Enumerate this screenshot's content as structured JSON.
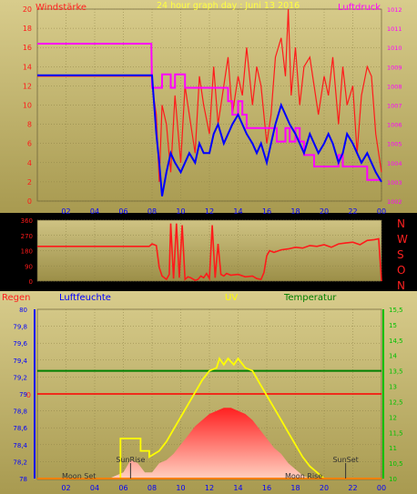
{
  "header": {
    "left_label": "Windstärke",
    "title": "24 hour graph day : Juni 13 2016",
    "right_label": "Luftdruck"
  },
  "direction_labels": [
    "N",
    "W",
    "S",
    "O",
    "N"
  ],
  "bottom_labels": {
    "regen": "Regen",
    "luftfeuchte": "Luftfeuchte",
    "uv": "UV",
    "temperatur": "Temperatur",
    "sun_rise": "SunRise",
    "sun_set": "SunSet",
    "moon_set": "Moon Set",
    "moon_rise": "Moon Rise",
    "zero_marker": "0"
  },
  "colors": {
    "background": "#000000",
    "plot_bg_top": "#d0c484",
    "plot_bg_bottom": "#a89a4e",
    "wind": "#ff1a1a",
    "wind_avg": "#0000ff",
    "pressure": "#ff00ff",
    "direction": "#ff1a1a",
    "uv": "#ffff00",
    "temp_ref": "#008000",
    "rain": "#ff0000",
    "humidity_axis": "#0000ff",
    "temp_axis": "#00c000",
    "x_tick_text": "#0000ff"
  },
  "chart_data": [
    {
      "type": "line",
      "name": "wind-pressure",
      "xlabel": "",
      "ylabel_left": "Windstärke",
      "ylabel_right": "Luftdruck",
      "x_ticks": [
        "02",
        "04",
        "06",
        "08",
        "10",
        "12",
        "14",
        "16",
        "18",
        "20",
        "22",
        "00"
      ],
      "x_range": [
        0,
        24
      ],
      "ylim_left": [
        0,
        20
      ],
      "y_ticks_left": [
        "0",
        "2",
        "4",
        "6",
        "8",
        "10",
        "12",
        "14",
        "16",
        "18",
        "20"
      ],
      "ylim_right": [
        1002,
        1012
      ],
      "y_ticks_right": [
        "1002",
        "1003",
        "1004",
        "1005",
        "1006",
        "1007",
        "1008",
        "1009",
        "1010",
        "1011",
        "1012"
      ],
      "series": [
        {
          "kind": "gust",
          "x": [
            0,
            8,
            8.1,
            8.3,
            8.5,
            8.7,
            9,
            9.3,
            9.6,
            10,
            10.3,
            10.6,
            11,
            11.3,
            11.6,
            12,
            12.3,
            12.6,
            13,
            13.3,
            13.6,
            14,
            14.3,
            14.6,
            15,
            15.3,
            15.6,
            16,
            16.3,
            16.6,
            17,
            17.3,
            17.5,
            17.7,
            18,
            18.3,
            18.6,
            19,
            19.3,
            19.6,
            20,
            20.3,
            20.6,
            21,
            21.3,
            21.6,
            22,
            22.3,
            22.6,
            23,
            23.3,
            23.6,
            24
          ],
          "y": [
            13,
            13,
            11,
            9,
            2,
            10,
            8,
            3,
            11,
            4,
            12,
            9,
            5,
            13,
            10,
            7,
            14,
            8,
            12,
            15,
            9,
            13,
            11,
            16,
            10,
            14,
            12,
            6,
            9,
            15,
            17,
            13,
            20,
            11,
            16,
            10,
            14,
            15,
            12,
            9,
            13,
            11,
            15,
            8,
            14,
            10,
            12,
            5,
            11,
            14,
            13,
            7,
            3
          ]
        },
        {
          "kind": "average",
          "x": [
            0,
            8,
            8.05,
            8.3,
            8.5,
            8.7,
            9,
            9.3,
            9.6,
            10,
            10.3,
            10.6,
            11,
            11.3,
            11.6,
            12,
            12.3,
            12.6,
            13,
            13.3,
            13.6,
            14,
            14.3,
            14.6,
            15,
            15.3,
            15.6,
            16,
            16.3,
            16.6,
            17,
            17.3,
            17.6,
            18,
            18.3,
            18.6,
            19,
            19.3,
            19.6,
            20,
            20.3,
            20.6,
            21,
            21.3,
            21.6,
            22,
            22.3,
            22.6,
            23,
            23.3,
            23.6,
            24
          ],
          "y": [
            13.1,
            13.1,
            12,
            7,
            4,
            0.5,
            3,
            5,
            4,
            3,
            4,
            5,
            4,
            6,
            5,
            5,
            7,
            8,
            6,
            7,
            8,
            9,
            8,
            7,
            6,
            5,
            6,
            4,
            6,
            8,
            10,
            9,
            8,
            7,
            6,
            5,
            7,
            6,
            5,
            6,
            7,
            6,
            4,
            5,
            7,
            6,
            5,
            4,
            5,
            4,
            3,
            2
          ]
        },
        {
          "kind": "pressure",
          "x": [
            0,
            7.95,
            8,
            8.7,
            8.7,
            9.3,
            9.3,
            9.6,
            9.6,
            10.3,
            10.3,
            10.6,
            10.6,
            13.3,
            13.3,
            13.6,
            13.6,
            14,
            14,
            14.3,
            14.3,
            14.6,
            14.6,
            15,
            15,
            16.7,
            16.7,
            17.3,
            17.3,
            17.6,
            17.6,
            18,
            18,
            18.3,
            18.3,
            18.6,
            18.6,
            19.3,
            19.3,
            21,
            21,
            21.3,
            21.3,
            22,
            22,
            23,
            23,
            24
          ],
          "y": [
            1010.2,
            1010.2,
            1007.9,
            1007.9,
            1008.6,
            1008.6,
            1007.9,
            1007.9,
            1008.6,
            1008.6,
            1007.9,
            1007.9,
            1007.9,
            1007.9,
            1007.2,
            1007.2,
            1006.5,
            1006.5,
            1007.2,
            1007.2,
            1006.5,
            1006.5,
            1005.8,
            1005.8,
            1005.8,
            1005.8,
            1005.1,
            1005.1,
            1005.8,
            1005.8,
            1005.1,
            1005.1,
            1005.8,
            1005.8,
            1005.1,
            1005.1,
            1004.4,
            1004.4,
            1003.8,
            1003.8,
            1004.4,
            1004.4,
            1003.8,
            1003.8,
            1003.8,
            1003.8,
            1003.1,
            1003.1
          ]
        }
      ]
    },
    {
      "type": "line",
      "name": "wind-direction",
      "ylim": [
        0,
        360
      ],
      "y_ticks": [
        "0",
        "90",
        "180",
        "270",
        "360"
      ],
      "series": [
        {
          "kind": "direction",
          "x": [
            0,
            7.8,
            8,
            8.3,
            8.5,
            8.7,
            9,
            9.2,
            9.3,
            9.5,
            9.7,
            9.9,
            10.1,
            10.3,
            10.5,
            10.7,
            11,
            11.2,
            11.4,
            11.6,
            11.8,
            12,
            12.2,
            12.4,
            12.6,
            12.8,
            13,
            13.2,
            13.5,
            14,
            14.5,
            15,
            15.3,
            15.6,
            15.8,
            16,
            16.2,
            16.5,
            17,
            17.5,
            18,
            18.5,
            19,
            19.5,
            20,
            20.5,
            21,
            21.5,
            22,
            22.5,
            23,
            23.5,
            23.8,
            24
          ],
          "y": [
            205,
            205,
            220,
            210,
            80,
            30,
            10,
            40,
            340,
            15,
            340,
            20,
            330,
            10,
            25,
            20,
            5,
            10,
            30,
            20,
            45,
            15,
            330,
            20,
            220,
            40,
            30,
            45,
            35,
            40,
            25,
            30,
            15,
            10,
            50,
            150,
            180,
            170,
            185,
            190,
            200,
            195,
            210,
            205,
            215,
            200,
            220,
            225,
            230,
            215,
            240,
            245,
            250,
            0
          ]
        }
      ]
    },
    {
      "type": "area",
      "name": "rain-uv-temp",
      "ylim_left": [
        78,
        80
      ],
      "y_ticks_left": [
        "78",
        "78,2",
        "78,4",
        "78,6",
        "78,8",
        "79",
        "79,2",
        "79,4",
        "79,6",
        "79,8",
        "80"
      ],
      "ylim_right": [
        10,
        15.5
      ],
      "y_ticks_right": [
        "10",
        "10,5",
        "11",
        "11,5",
        "12",
        "12,5",
        "13",
        "13,5",
        "14",
        "14,5",
        "15",
        "15,5"
      ],
      "series": [
        {
          "kind": "solar",
          "x": [
            0,
            5,
            6,
            6.5,
            7,
            7.5,
            8,
            8.5,
            9,
            9.5,
            10,
            10.5,
            11,
            11.5,
            12,
            12.5,
            13,
            13.5,
            14,
            14.5,
            15,
            15.5,
            16,
            16.5,
            17,
            17.5,
            18,
            18.5,
            19,
            19,
            24
          ],
          "y": [
            10,
            10,
            10.2,
            10.6,
            10.5,
            10.2,
            10.2,
            10.5,
            10.6,
            10.8,
            11.1,
            11.4,
            11.7,
            11.9,
            12.1,
            12.2,
            12.3,
            12.3,
            12.2,
            12.1,
            11.9,
            11.6,
            11.3,
            11,
            10.8,
            10.5,
            10.3,
            10.1,
            10,
            10,
            10
          ]
        },
        {
          "kind": "uv",
          "x": [
            0,
            5.8,
            5.8,
            7.2,
            7.2,
            7.8,
            7.8,
            8.5,
            9,
            9.5,
            10,
            10.5,
            11,
            11.5,
            12,
            12.5,
            12.7,
            13,
            13.3,
            13.7,
            14,
            14.5,
            15,
            15.5,
            16,
            16.5,
            17,
            17.5,
            18,
            18.5,
            19,
            19.5,
            20,
            24
          ],
          "y": [
            10,
            10,
            11.3,
            11.3,
            10.9,
            10.9,
            10.7,
            10.9,
            11.2,
            11.6,
            12,
            12.4,
            12.8,
            13.2,
            13.5,
            13.6,
            13.9,
            13.7,
            13.9,
            13.7,
            13.9,
            13.6,
            13.5,
            13.1,
            12.7,
            12.3,
            11.9,
            11.5,
            11.1,
            10.7,
            10.4,
            10.2,
            10,
            10
          ]
        }
      ],
      "temp_reference": 13.5,
      "rain_reference": 79,
      "markers": [
        {
          "label": "SunRise",
          "x": 6.5
        },
        {
          "label": "SunSet",
          "x": 21.5
        },
        {
          "label": "Moon Set",
          "x": 0
        },
        {
          "label": "Moon Rise",
          "x": 16
        }
      ],
      "x_ticks": [
        "02",
        "04",
        "06",
        "08",
        "10",
        "12",
        "14",
        "16",
        "18",
        "20",
        "22",
        "00"
      ]
    }
  ]
}
